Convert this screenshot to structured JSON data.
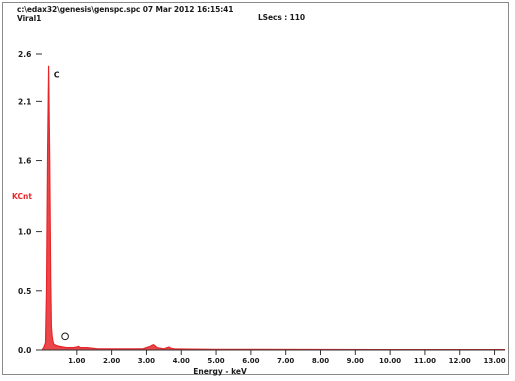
{
  "header": {
    "file_line": "c:\\edax32\\genesis\\genspc.spc  07 Mar 2012 16:15:41",
    "sample_name": "Viral1",
    "lsecs": "LSecs :  110"
  },
  "chart_data": {
    "type": "line",
    "title": "",
    "xlabel": "Energy - keV",
    "ylabel": "KCnt",
    "xlim": [
      0,
      13.3
    ],
    "ylim": [
      0,
      2.5
    ],
    "grid": false,
    "legend": "none",
    "x_ticks": [
      1.0,
      2.0,
      3.0,
      4.0,
      5.0,
      6.0,
      7.0,
      8.0,
      9.0,
      10.0,
      11.0,
      12.0,
      13.0
    ],
    "x_tick_labels": [
      "1.00",
      "2.00",
      "3.00",
      "4.00",
      "5.00",
      "6.00",
      "7.00",
      "8.00",
      "9.00",
      "10.00",
      "11.00",
      "12.00",
      "13.00"
    ],
    "y_ticks": [
      0.0,
      0.5,
      1.0,
      1.6,
      2.1,
      2.6
    ],
    "y_tick_labels": [
      "0.0",
      "0.5",
      "1.0",
      "1.6",
      "2.1",
      "2.6"
    ],
    "series": [
      {
        "color": "#e8262a",
        "x": [
          0.0,
          0.05,
          0.1,
          0.13,
          0.16,
          0.19,
          0.22,
          0.25,
          0.27,
          0.29,
          0.31,
          0.34,
          0.4,
          0.5,
          0.7,
          0.9,
          1.0,
          1.05,
          1.1,
          1.3,
          1.6,
          2.0,
          2.5,
          2.9,
          3.0,
          3.1,
          3.2,
          3.25,
          3.3,
          3.4,
          3.5,
          3.6,
          3.65,
          3.7,
          3.8,
          4.2,
          5.0,
          6.0,
          8.0,
          10.0,
          12.0,
          13.3
        ],
        "values": [
          0.0,
          0.02,
          0.06,
          0.5,
          1.7,
          2.4,
          1.6,
          0.6,
          0.2,
          0.12,
          0.08,
          0.05,
          0.04,
          0.03,
          0.02,
          0.02,
          0.025,
          0.03,
          0.02,
          0.02,
          0.01,
          0.01,
          0.01,
          0.01,
          0.02,
          0.03,
          0.045,
          0.035,
          0.02,
          0.015,
          0.01,
          0.02,
          0.025,
          0.015,
          0.01,
          0.008,
          0.006,
          0.005,
          0.004,
          0.003,
          0.003,
          0.003
        ]
      }
    ],
    "annotations": [
      {
        "label": "C",
        "x": 0.28,
        "y": 2.3
      },
      {
        "label": "O",
        "x": 0.52,
        "y": 0.09
      }
    ]
  }
}
